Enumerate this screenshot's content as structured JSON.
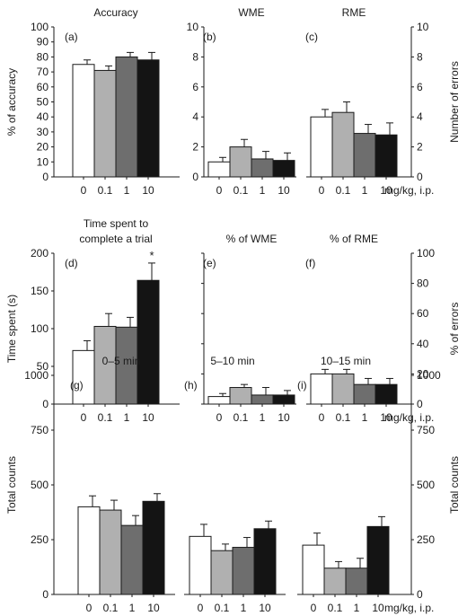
{
  "doses": [
    "0",
    "0.1",
    "1",
    "10"
  ],
  "dose_unit": "mg/kg, i.p.",
  "colors": {
    "c0": "#ffffff",
    "c1": "#b0b0b0",
    "c2": "#6e6e6e",
    "c3": "#141414"
  },
  "chart_data": [
    {
      "type": "bar",
      "id": "a",
      "label": "(a)",
      "title": "Accuracy",
      "ylabel": "% of accuracy",
      "ylim": [
        0,
        100
      ],
      "yticks": [
        0,
        10,
        20,
        30,
        40,
        50,
        60,
        70,
        80,
        90,
        100
      ],
      "categories": [
        "0",
        "0.1",
        "1",
        "10"
      ],
      "values": [
        75,
        71,
        80,
        78
      ],
      "errors": [
        3,
        3,
        3,
        5
      ]
    },
    {
      "type": "bar",
      "id": "b",
      "label": "(b)",
      "title": "WME",
      "ylim": [
        0,
        10
      ],
      "yticks": [
        0,
        2,
        4,
        6,
        8,
        10
      ],
      "categories": [
        "0",
        "0.1",
        "1",
        "10"
      ],
      "values": [
        1.0,
        2.0,
        1.2,
        1.1
      ],
      "errors": [
        0.3,
        0.5,
        0.5,
        0.5
      ]
    },
    {
      "type": "bar",
      "id": "c",
      "label": "(c)",
      "title": "RME",
      "ylabel": "Number of errors",
      "ylim": [
        0,
        10
      ],
      "yticks": [
        0,
        2,
        4,
        6,
        8,
        10
      ],
      "categories": [
        "0",
        "0.1",
        "1",
        "10"
      ],
      "values": [
        4.0,
        4.3,
        2.9,
        2.8
      ],
      "errors": [
        0.5,
        0.7,
        0.6,
        0.8
      ]
    },
    {
      "type": "bar",
      "id": "d",
      "label": "(d)",
      "title_lines": [
        "Time spent to",
        "complete a trial"
      ],
      "ylabel": "Time spent (s)",
      "ylim": [
        0,
        200
      ],
      "yticks": [
        0,
        50,
        100,
        150,
        200
      ],
      "categories": [
        "0",
        "0.1",
        "1",
        "10"
      ],
      "values": [
        71,
        103,
        102,
        164
      ],
      "errors": [
        13,
        17,
        13,
        23
      ],
      "annotations": [
        {
          "index": 3,
          "text": "*"
        }
      ]
    },
    {
      "type": "bar",
      "id": "e",
      "label": "(e)",
      "title": "% of WME",
      "ylim": [
        0,
        100
      ],
      "yticks": [
        0,
        20,
        40,
        60,
        80,
        100
      ],
      "categories": [
        "0",
        "0.1",
        "1",
        "10"
      ],
      "values": [
        5,
        11,
        6,
        6
      ],
      "errors": [
        2,
        2,
        5,
        3
      ]
    },
    {
      "type": "bar",
      "id": "f",
      "label": "(f)",
      "title": "% of RME",
      "ylabel": "% of errors",
      "ylim": [
        0,
        100
      ],
      "yticks": [
        0,
        20,
        40,
        60,
        80,
        100
      ],
      "categories": [
        "0",
        "0.1",
        "1",
        "10"
      ],
      "values": [
        20,
        20,
        13,
        13
      ],
      "errors": [
        3,
        3,
        4,
        4
      ]
    },
    {
      "type": "bar",
      "id": "g",
      "label": "(g)",
      "title": "0–5 min",
      "ylabel": "Total counts",
      "ylim": [
        0,
        1000
      ],
      "yticks": [
        0,
        250,
        500,
        750,
        1000
      ],
      "categories": [
        "0",
        "0.1",
        "1",
        "10"
      ],
      "values": [
        400,
        385,
        315,
        425
      ],
      "errors": [
        50,
        45,
        45,
        35
      ]
    },
    {
      "type": "bar",
      "id": "h",
      "label": "(h)",
      "title": "5–10 min",
      "ylim": [
        0,
        1000
      ],
      "categories": [
        "0",
        "0.1",
        "1",
        "10"
      ],
      "values": [
        265,
        200,
        215,
        300
      ],
      "errors": [
        55,
        30,
        45,
        35
      ]
    },
    {
      "type": "bar",
      "id": "i",
      "label": "(i)",
      "title": "10–15 min",
      "ylabel": "Total counts",
      "ylim": [
        0,
        1000
      ],
      "yticks": [
        0,
        250,
        500,
        750,
        1000
      ],
      "categories": [
        "0",
        "0.1",
        "1",
        "10"
      ],
      "values": [
        225,
        120,
        120,
        310
      ],
      "errors": [
        55,
        30,
        45,
        45
      ]
    }
  ]
}
